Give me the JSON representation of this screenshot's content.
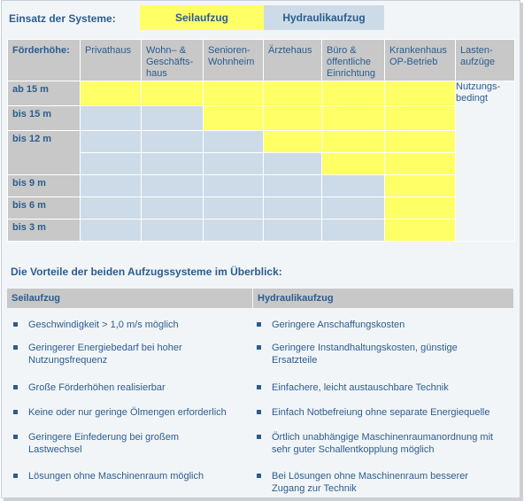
{
  "legend": {
    "label": "Einsatz der Systeme:",
    "seil": "Seilaufzug",
    "hydraulik": "Hydraulikaufzug"
  },
  "table": {
    "corner": "Förderhöhe:",
    "columns": [
      [
        "Privathaus"
      ],
      [
        "Wohn– &",
        "Geschäfts-",
        "haus"
      ],
      [
        "Senioren-",
        "Wohnheim"
      ],
      [
        "Ärztehaus"
      ],
      [
        "Büro &",
        "öffentliche",
        "Einrichtung"
      ],
      [
        "Krankenhaus",
        "OP-Betrieb"
      ],
      [
        "Lasten-",
        "aufzüge"
      ]
    ],
    "rows": [
      {
        "label": "ab 15 m",
        "cells": [
          "y",
          "y",
          "y",
          "y",
          "y",
          "y"
        ]
      },
      {
        "label": "bis 15 m",
        "cells": [
          "b",
          "b",
          "y",
          "y",
          "y",
          "y"
        ]
      },
      {
        "label": "bis 12 m",
        "cells": [
          "b",
          "b",
          "b",
          "y",
          "y",
          "y"
        ]
      },
      {
        "label": "",
        "cells": [
          "b",
          "b",
          "b",
          "b",
          "y",
          "y"
        ]
      },
      {
        "label": "bis 9 m",
        "cells": [
          "b",
          "b",
          "b",
          "b",
          "b",
          "y"
        ]
      },
      {
        "label": "bis 6 m",
        "cells": [
          "b",
          "b",
          "b",
          "b",
          "b",
          "y"
        ]
      },
      {
        "label": "bis 3 m",
        "cells": [
          "b",
          "b",
          "b",
          "b",
          "b",
          "y"
        ]
      }
    ],
    "lasten_note": [
      "Nutzungs-",
      "bedingt"
    ]
  },
  "vorteile": {
    "title": "Die Vorteile der beiden Aufzugssysteme im Überblick:",
    "seil_head": "Seilaufzug",
    "hydraulik_head": "Hydraulikaufzug",
    "seil_items": [
      [
        "Geschwindigkeit > 1,0 m/s möglich"
      ],
      [
        "Geringerer Energiebedarf bei hoher",
        "Nutzungsfrequenz"
      ],
      [
        "Große Förderhöhen realisierbar"
      ],
      [
        "Keine oder nur geringe Ölmengen erforderlich"
      ],
      [
        "Geringere Einfederung bei großem",
        "Lastwechsel"
      ],
      [
        "Lösungen ohne Maschinenraum möglich"
      ]
    ],
    "hydraulik_items": [
      [
        "Geringere Anschaffungskosten"
      ],
      [
        "Geringere Instandhaltungskosten, günstige",
        "Ersatzteile"
      ],
      [
        "Einfachere, leicht austauschbare Technik"
      ],
      [
        "Einfach Notbefreiung ohne separate Energiequelle"
      ],
      [
        "Örtlich unabhängige Maschinenraumanordnung mit",
        "sehr guter Schallentkopplung möglich"
      ],
      [
        "Bei Lösungen ohne Maschinenraum besserer",
        "Zugang zur Technik"
      ]
    ]
  },
  "colors": {
    "seil": "#ffff66",
    "hydraulik": "#cddbe8",
    "header_gray": "#c8c8c8",
    "text": "#2a5d8f"
  }
}
